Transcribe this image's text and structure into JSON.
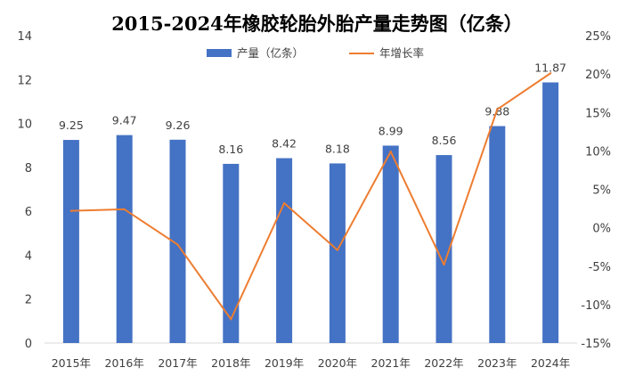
{
  "chart_data": {
    "type": "bar+line",
    "title": "2015-2024年橡胶轮胎外胎产量走势图（亿条）",
    "categories": [
      "2015年",
      "2016年",
      "2017年",
      "2018年",
      "2019年",
      "2020年",
      "2021年",
      "2022年",
      "2023年",
      "2024年"
    ],
    "series": [
      {
        "name": "产量（亿条）",
        "type": "bar",
        "axis": "left",
        "color": "#4472C4",
        "values": [
          9.25,
          9.47,
          9.26,
          8.16,
          8.42,
          8.18,
          8.99,
          8.56,
          9.88,
          11.87
        ],
        "labels": [
          "9.25",
          "9.47",
          "9.26",
          "8.16",
          "8.42",
          "8.18",
          "8.99",
          "8.56",
          "9.88",
          "11.87"
        ]
      },
      {
        "name": "年增长率",
        "type": "line",
        "axis": "right",
        "color": "#ED7D31",
        "values": [
          2.2,
          2.4,
          -2.2,
          -11.9,
          3.2,
          -2.9,
          9.9,
          -4.8,
          15.4,
          20.1
        ]
      }
    ],
    "y_left": {
      "min": 0,
      "max": 14,
      "ticks": [
        "0",
        "2",
        "4",
        "6",
        "8",
        "10",
        "12",
        "14"
      ]
    },
    "y_right": {
      "min": -15,
      "max": 25,
      "ticks": [
        "-15%",
        "-10%",
        "-5%",
        "0%",
        "5%",
        "10%",
        "15%",
        "20%",
        "25%"
      ]
    },
    "grid": false,
    "legend_position": "top-center"
  }
}
